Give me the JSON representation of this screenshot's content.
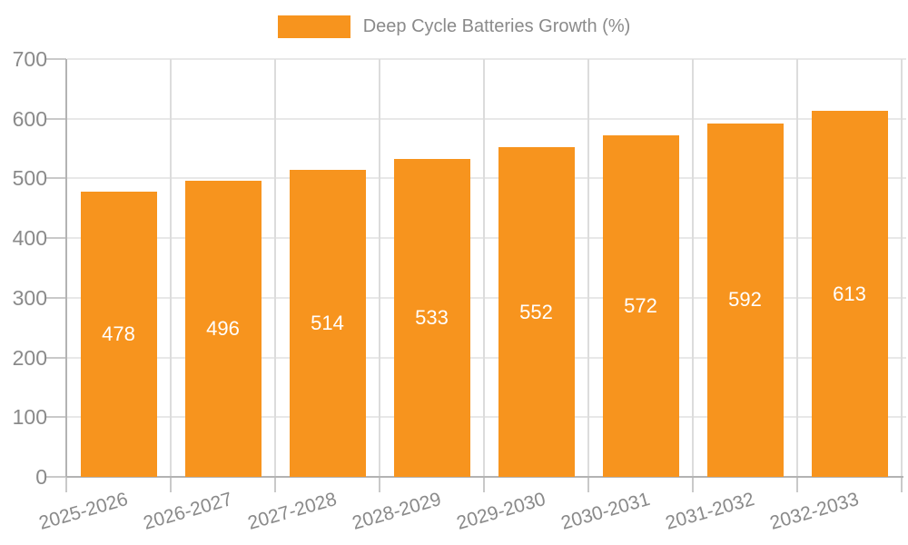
{
  "chart_data": {
    "type": "bar",
    "legend_label": "Deep Cycle Batteries Growth (%)",
    "categories": [
      "2025-2026",
      "2026-2027",
      "2027-2028",
      "2028-2029",
      "2029-2030",
      "2030-2031",
      "2031-2032",
      "2032-2033"
    ],
    "values": [
      478,
      496,
      514,
      533,
      552,
      572,
      592,
      613
    ],
    "yticks": [
      0,
      100,
      200,
      300,
      400,
      500,
      600,
      700
    ],
    "ylim": [
      0,
      700
    ],
    "grid": true,
    "legend_position": "top-center",
    "value_labels": "centered-inside-bars",
    "colors": {
      "bar": "#F7941E",
      "value_label_text": "#FFFFFF",
      "axis_text": "#8A8A8A",
      "axis_line": "#B3B3B3",
      "tick_line": "#C9C9C9",
      "gridline_h": "#E8E8E8",
      "gridline_v": "#DCDCDC"
    }
  }
}
